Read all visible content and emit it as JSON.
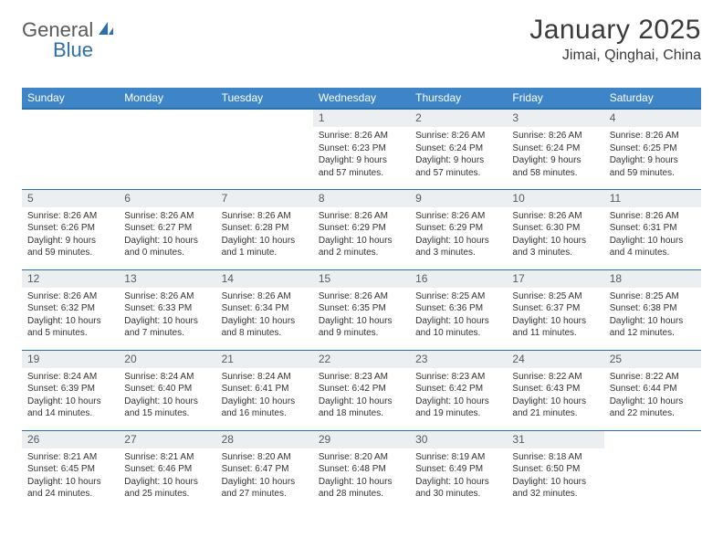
{
  "brand": {
    "text_a": "General",
    "text_b": "Blue"
  },
  "title": "January 2025",
  "location": "Jimai, Qinghai, China",
  "colors": {
    "header_bg": "#3d85c6",
    "header_border": "#2f6fa8",
    "daynum_bg": "#eceff1",
    "text": "#333333",
    "logo_gray": "#5a5a5a",
    "logo_blue": "#2f6fa8"
  },
  "weekdays": [
    "Sunday",
    "Monday",
    "Tuesday",
    "Wednesday",
    "Thursday",
    "Friday",
    "Saturday"
  ],
  "weeks": [
    [
      null,
      null,
      null,
      {
        "n": "1",
        "sr": "8:26 AM",
        "ss": "6:23 PM",
        "dl": "9 hours and 57 minutes."
      },
      {
        "n": "2",
        "sr": "8:26 AM",
        "ss": "6:24 PM",
        "dl": "9 hours and 57 minutes."
      },
      {
        "n": "3",
        "sr": "8:26 AM",
        "ss": "6:24 PM",
        "dl": "9 hours and 58 minutes."
      },
      {
        "n": "4",
        "sr": "8:26 AM",
        "ss": "6:25 PM",
        "dl": "9 hours and 59 minutes."
      }
    ],
    [
      {
        "n": "5",
        "sr": "8:26 AM",
        "ss": "6:26 PM",
        "dl": "9 hours and 59 minutes."
      },
      {
        "n": "6",
        "sr": "8:26 AM",
        "ss": "6:27 PM",
        "dl": "10 hours and 0 minutes."
      },
      {
        "n": "7",
        "sr": "8:26 AM",
        "ss": "6:28 PM",
        "dl": "10 hours and 1 minute."
      },
      {
        "n": "8",
        "sr": "8:26 AM",
        "ss": "6:29 PM",
        "dl": "10 hours and 2 minutes."
      },
      {
        "n": "9",
        "sr": "8:26 AM",
        "ss": "6:29 PM",
        "dl": "10 hours and 3 minutes."
      },
      {
        "n": "10",
        "sr": "8:26 AM",
        "ss": "6:30 PM",
        "dl": "10 hours and 3 minutes."
      },
      {
        "n": "11",
        "sr": "8:26 AM",
        "ss": "6:31 PM",
        "dl": "10 hours and 4 minutes."
      }
    ],
    [
      {
        "n": "12",
        "sr": "8:26 AM",
        "ss": "6:32 PM",
        "dl": "10 hours and 5 minutes."
      },
      {
        "n": "13",
        "sr": "8:26 AM",
        "ss": "6:33 PM",
        "dl": "10 hours and 7 minutes."
      },
      {
        "n": "14",
        "sr": "8:26 AM",
        "ss": "6:34 PM",
        "dl": "10 hours and 8 minutes."
      },
      {
        "n": "15",
        "sr": "8:26 AM",
        "ss": "6:35 PM",
        "dl": "10 hours and 9 minutes."
      },
      {
        "n": "16",
        "sr": "8:25 AM",
        "ss": "6:36 PM",
        "dl": "10 hours and 10 minutes."
      },
      {
        "n": "17",
        "sr": "8:25 AM",
        "ss": "6:37 PM",
        "dl": "10 hours and 11 minutes."
      },
      {
        "n": "18",
        "sr": "8:25 AM",
        "ss": "6:38 PM",
        "dl": "10 hours and 12 minutes."
      }
    ],
    [
      {
        "n": "19",
        "sr": "8:24 AM",
        "ss": "6:39 PM",
        "dl": "10 hours and 14 minutes."
      },
      {
        "n": "20",
        "sr": "8:24 AM",
        "ss": "6:40 PM",
        "dl": "10 hours and 15 minutes."
      },
      {
        "n": "21",
        "sr": "8:24 AM",
        "ss": "6:41 PM",
        "dl": "10 hours and 16 minutes."
      },
      {
        "n": "22",
        "sr": "8:23 AM",
        "ss": "6:42 PM",
        "dl": "10 hours and 18 minutes."
      },
      {
        "n": "23",
        "sr": "8:23 AM",
        "ss": "6:42 PM",
        "dl": "10 hours and 19 minutes."
      },
      {
        "n": "24",
        "sr": "8:22 AM",
        "ss": "6:43 PM",
        "dl": "10 hours and 21 minutes."
      },
      {
        "n": "25",
        "sr": "8:22 AM",
        "ss": "6:44 PM",
        "dl": "10 hours and 22 minutes."
      }
    ],
    [
      {
        "n": "26",
        "sr": "8:21 AM",
        "ss": "6:45 PM",
        "dl": "10 hours and 24 minutes."
      },
      {
        "n": "27",
        "sr": "8:21 AM",
        "ss": "6:46 PM",
        "dl": "10 hours and 25 minutes."
      },
      {
        "n": "28",
        "sr": "8:20 AM",
        "ss": "6:47 PM",
        "dl": "10 hours and 27 minutes."
      },
      {
        "n": "29",
        "sr": "8:20 AM",
        "ss": "6:48 PM",
        "dl": "10 hours and 28 minutes."
      },
      {
        "n": "30",
        "sr": "8:19 AM",
        "ss": "6:49 PM",
        "dl": "10 hours and 30 minutes."
      },
      {
        "n": "31",
        "sr": "8:18 AM",
        "ss": "6:50 PM",
        "dl": "10 hours and 32 minutes."
      },
      null
    ]
  ],
  "labels": {
    "sunrise": "Sunrise:",
    "sunset": "Sunset:",
    "daylight": "Daylight:"
  }
}
